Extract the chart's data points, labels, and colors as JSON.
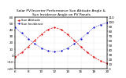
{
  "title1": "Solar PV/Inverter Performance Sun Altitude Angle &",
  "title2": "Sun Incidence Angle on PV Panels",
  "legend": [
    "Sun Altitude",
    "Sun Incidence"
  ],
  "x_hours": [
    6,
    7,
    8,
    9,
    10,
    11,
    12,
    13,
    14,
    15,
    16,
    17,
    18,
    19,
    20
  ],
  "sun_altitude": [
    -2,
    5,
    14,
    24,
    33,
    41,
    44,
    41,
    33,
    24,
    14,
    5,
    -2,
    -8,
    -12
  ],
  "sun_incidence": [
    88,
    76,
    64,
    53,
    44,
    38,
    36,
    38,
    44,
    53,
    64,
    76,
    88,
    94,
    98
  ],
  "altitude_color": "#dd0000",
  "incidence_color": "#0000cc",
  "bg_color": "#ffffff",
  "ylim_left": [
    -20,
    60
  ],
  "ylim_right": [
    0,
    110
  ],
  "xlim": [
    6,
    20
  ],
  "grid_color": "#aaaaaa",
  "title_fontsize": 3.2,
  "tick_fontsize": 3.0,
  "legend_fontsize": 2.8
}
